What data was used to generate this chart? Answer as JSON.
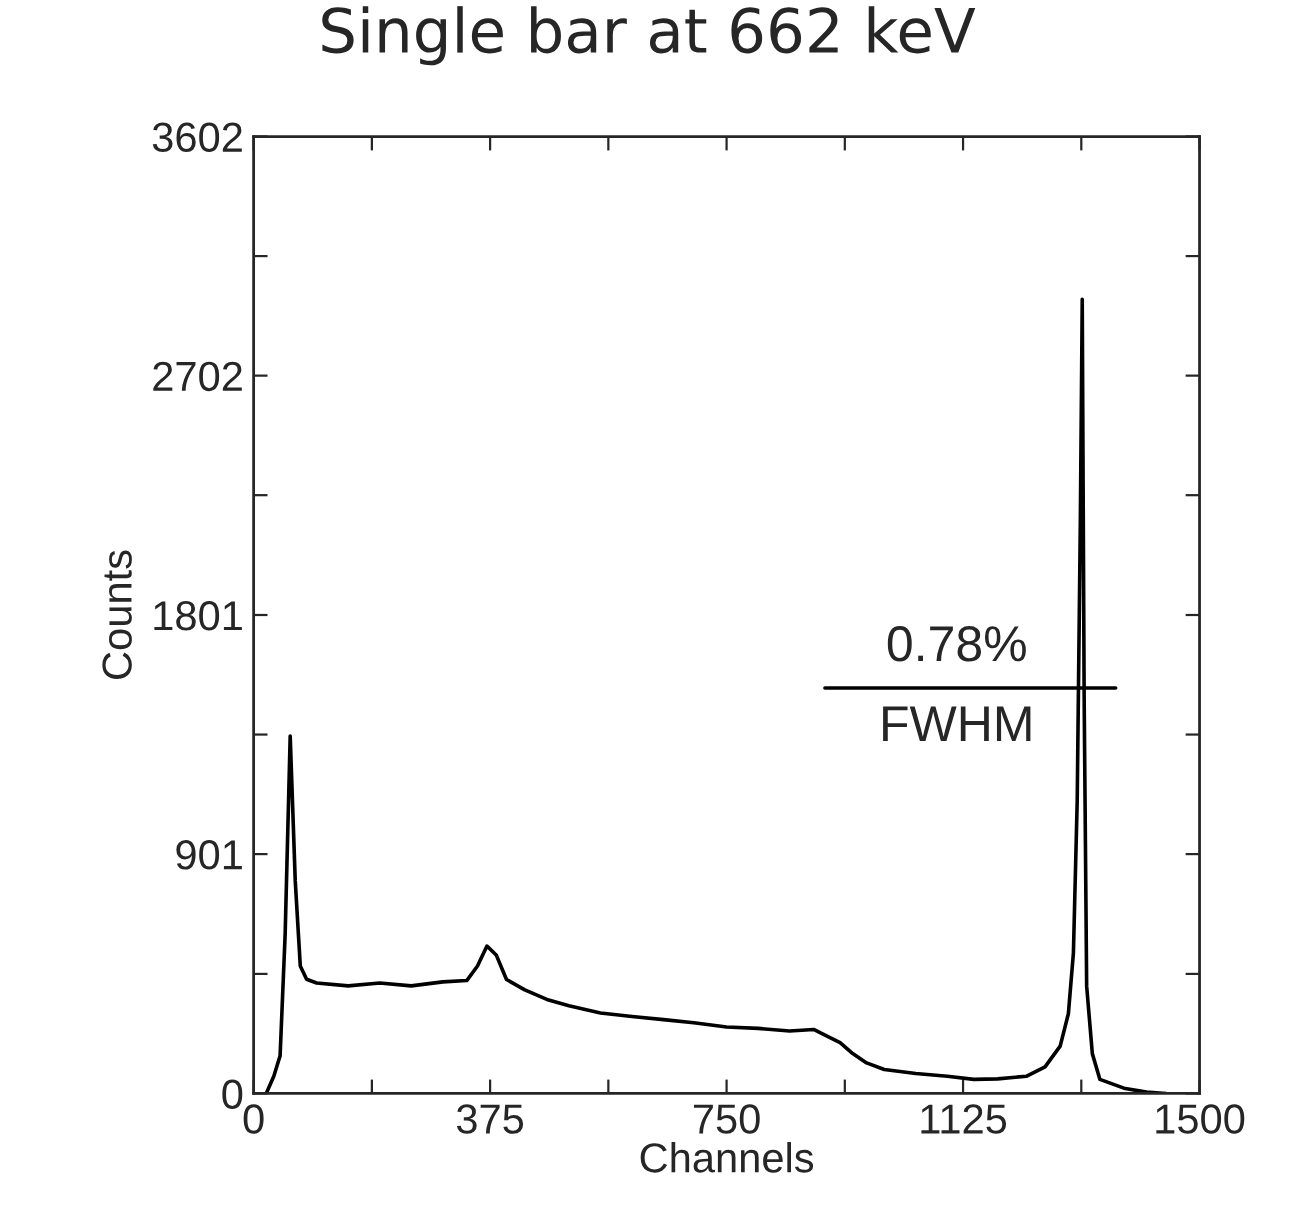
{
  "chart_data": {
    "type": "line",
    "title": "Single bar at 662 keV",
    "xlabel": "Channels",
    "ylabel": "Counts",
    "series": [
      {
        "color": "#000000",
        "x": [
          20,
          32,
          42,
          50,
          58,
          66,
          74,
          84,
          100,
          150,
          200,
          250,
          300,
          338,
          355,
          370,
          385,
          401,
          430,
          465,
          500,
          550,
          600,
          650,
          698,
          750,
          800,
          850,
          888,
          910,
          930,
          950,
          972,
          1000,
          1050,
          1100,
          1142,
          1180,
          1226,
          1255,
          1279,
          1292,
          1300,
          1306,
          1311,
          1314,
          1317,
          1321,
          1330,
          1342,
          1380,
          1416,
          1447
        ],
        "values": [
          0,
          65,
          142,
          600,
          1345,
          800,
          480,
          430,
          416,
          405,
          416,
          405,
          420,
          425,
          480,
          555,
          520,
          429,
          390,
          354,
          330,
          303,
          290,
          278,
          266,
          250,
          245,
          235,
          241,
          215,
          191,
          150,
          115,
          90,
          75,
          65,
          53,
          55,
          65,
          100,
          178,
          300,
          529,
          1100,
          2160,
          2989,
          1500,
          404,
          150,
          53,
          20,
          5,
          0
        ]
      },
      {
        "color": "#000000",
        "x": [
          906,
          1367
        ],
        "values": [
          1526,
          1526
        ]
      }
    ],
    "annotations": [
      {
        "text": "0.78%",
        "x": 1115,
        "y": 1526
      },
      {
        "text": "FWHM",
        "x": 1115,
        "y": 1526
      }
    ],
    "xlim": [
      0,
      1500
    ],
    "xticks": [
      0,
      {
        "value": 187.5,
        "label": null
      },
      375,
      {
        "value": 562.5,
        "label": null
      },
      750,
      {
        "value": 937.5,
        "label": null
      },
      1125,
      {
        "value": 1312.5,
        "label": null
      },
      1500
    ],
    "ylim": [
      0,
      3602
    ],
    "yticks": [
      0,
      {
        "value": 450,
        "label": null
      },
      901,
      {
        "value": 1351,
        "label": null
      },
      1801,
      {
        "value": 2252,
        "label": null
      },
      2702,
      {
        "value": 3152,
        "label": null
      },
      3602
    ],
    "grid": false,
    "legend": false,
    "marker": "none",
    "line_style": "solid"
  }
}
